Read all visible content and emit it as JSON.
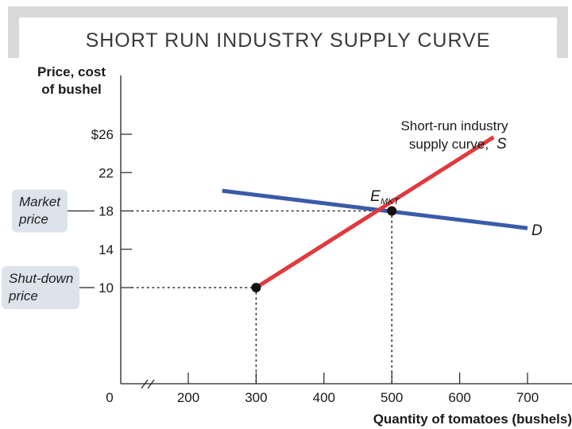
{
  "title": "SHORT RUN INDUSTRY SUPPLY CURVE",
  "chart_data": {
    "type": "line",
    "ylabel": [
      "Price, cost",
      "of bushel"
    ],
    "xlabel": "Quantity of tomatoes (bushels)",
    "xlim": [
      0,
      700
    ],
    "ylim": [
      0,
      30
    ],
    "x_ticks": [
      {
        "value": 0,
        "label": "0"
      },
      {
        "value": 200,
        "label": "200"
      },
      {
        "value": 300,
        "label": "300"
      },
      {
        "value": 400,
        "label": "400"
      },
      {
        "value": 500,
        "label": "500"
      },
      {
        "value": 600,
        "label": "600"
      },
      {
        "value": 700,
        "label": "700"
      }
    ],
    "y_ticks": [
      {
        "value": 10,
        "label": "10"
      },
      {
        "value": 14,
        "label": "14"
      },
      {
        "value": 18,
        "label": "18"
      },
      {
        "value": 22,
        "label": "22"
      },
      {
        "value": 26,
        "label": "$26"
      }
    ],
    "series": [
      {
        "name": "S",
        "color": "#e03a3e",
        "points": [
          [
            300,
            10
          ],
          [
            650,
            25.7
          ]
        ]
      },
      {
        "name": "D",
        "color": "#3a5ba8",
        "points": [
          [
            250,
            20.1
          ],
          [
            700,
            16.2
          ]
        ]
      }
    ],
    "points": [
      {
        "label": "",
        "x": 300,
        "y": 10
      },
      {
        "label": "E",
        "sub": "MKT",
        "x": 500,
        "y": 18
      }
    ],
    "annotations": {
      "supply_line1": "Short-run industry",
      "supply_line2": "supply curve,",
      "supply_symbol": "S",
      "demand_label": "D"
    },
    "price_labels": [
      {
        "lines": [
          "Market",
          "price"
        ],
        "y": 18
      },
      {
        "lines": [
          "Shut-down",
          "price"
        ],
        "y": 10
      }
    ]
  }
}
